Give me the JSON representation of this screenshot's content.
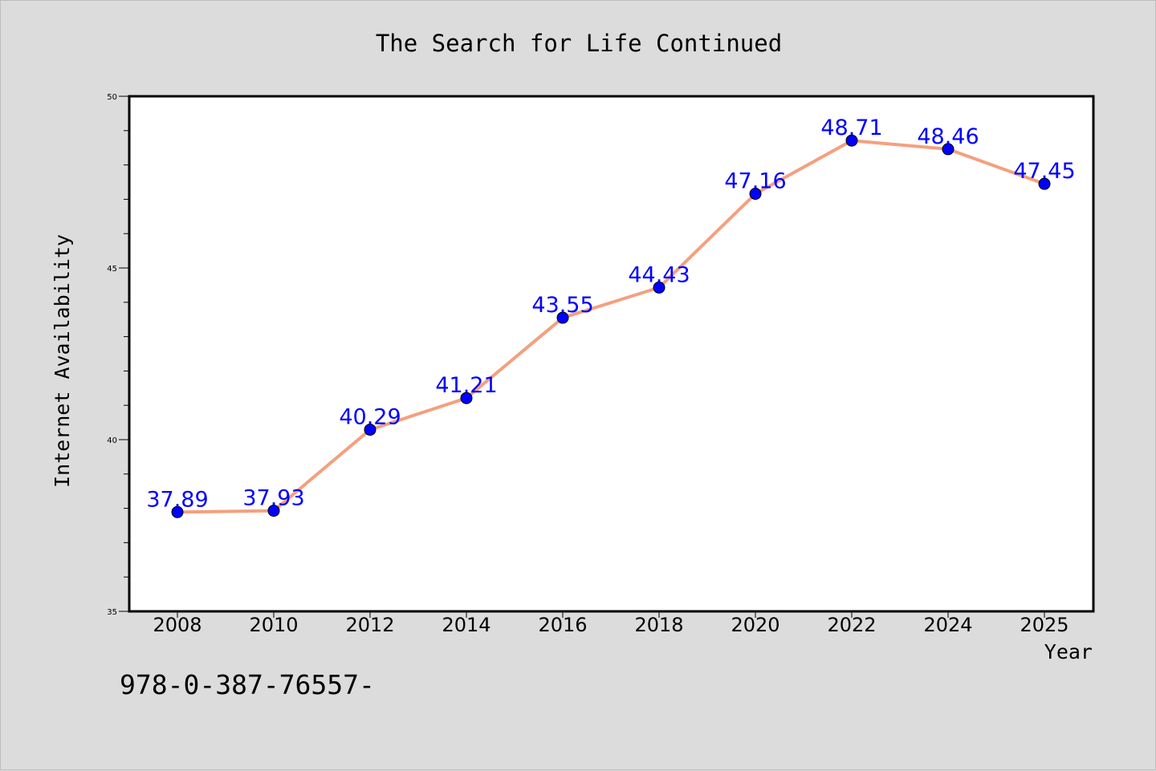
{
  "chart_data": {
    "type": "line",
    "title": "The Search for Life Continued",
    "xlabel": "Year",
    "ylabel": "Internet Availability",
    "categories": [
      "2008",
      "2010",
      "2012",
      "2014",
      "2016",
      "2018",
      "2020",
      "2022",
      "2024",
      "2025"
    ],
    "values": [
      37.89,
      37.93,
      40.29,
      41.21,
      43.55,
      44.43,
      47.16,
      48.71,
      48.46,
      47.45
    ],
    "data_labels": [
      "37.89",
      "37.93",
      "40.29",
      "41.21",
      "43.55",
      "44.43",
      "47.16",
      "48.71",
      "48.46",
      "47.45"
    ],
    "ylim": [
      35,
      50
    ],
    "yticks": [
      "35",
      "40",
      "45",
      "50"
    ],
    "grid": false,
    "colors": {
      "line": "#f4a07f",
      "marker": "#0000ff",
      "label": "#0000ff",
      "background": "#dcdcdc",
      "plot": "#ffffff"
    }
  },
  "footer": {
    "isbn": "978-0-387-76557-"
  }
}
